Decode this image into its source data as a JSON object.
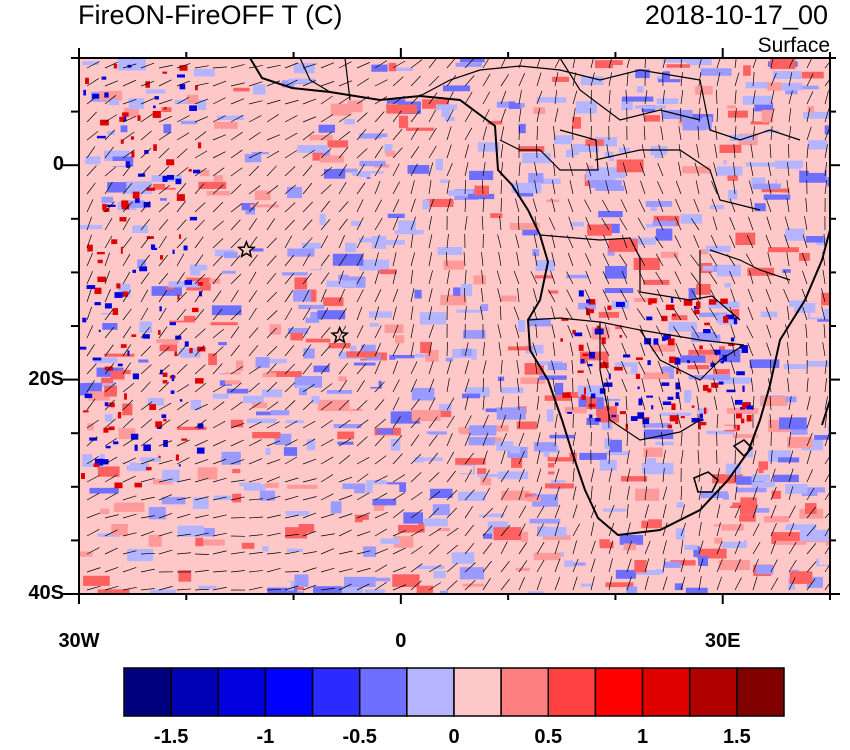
{
  "header": {
    "title": "FireON-FireOFF T (C)",
    "datetime": "2018-10-17_00",
    "level": "Surface"
  },
  "axes": {
    "lat_labels": [
      {
        "value": 0,
        "label": "0"
      },
      {
        "value": -20,
        "label": "20S"
      },
      {
        "value": -40,
        "label": "40S"
      }
    ],
    "lon_labels": [
      {
        "value": -30,
        "label": "30W"
      },
      {
        "value": 0,
        "label": "0"
      },
      {
        "value": 30,
        "label": "30E"
      }
    ],
    "lon_range": [
      -30,
      40
    ],
    "lat_range": [
      -40,
      10
    ]
  },
  "colorbar": {
    "colors": [
      "#00007f",
      "#0000b4",
      "#0000e0",
      "#0000ff",
      "#2b2bff",
      "#6e6eff",
      "#b4b4ff",
      "#ffc8c8",
      "#ff8080",
      "#ff4040",
      "#ff0000",
      "#e00000",
      "#b00000",
      "#800000"
    ],
    "ticks": [
      {
        "value": -1.5,
        "label": "-1.5"
      },
      {
        "value": -1,
        "label": "-1"
      },
      {
        "value": -0.5,
        "label": "-0.5"
      },
      {
        "value": 0,
        "label": "0"
      },
      {
        "value": 0.5,
        "label": "0.5"
      },
      {
        "value": 1,
        "label": "1"
      },
      {
        "value": 1.5,
        "label": "1.5"
      }
    ]
  },
  "markers": [
    {
      "name": "star-marker",
      "lon": -14.4,
      "lat": -7.9
    },
    {
      "name": "star-marker",
      "lon": -5.7,
      "lat": -15.9
    }
  ]
}
